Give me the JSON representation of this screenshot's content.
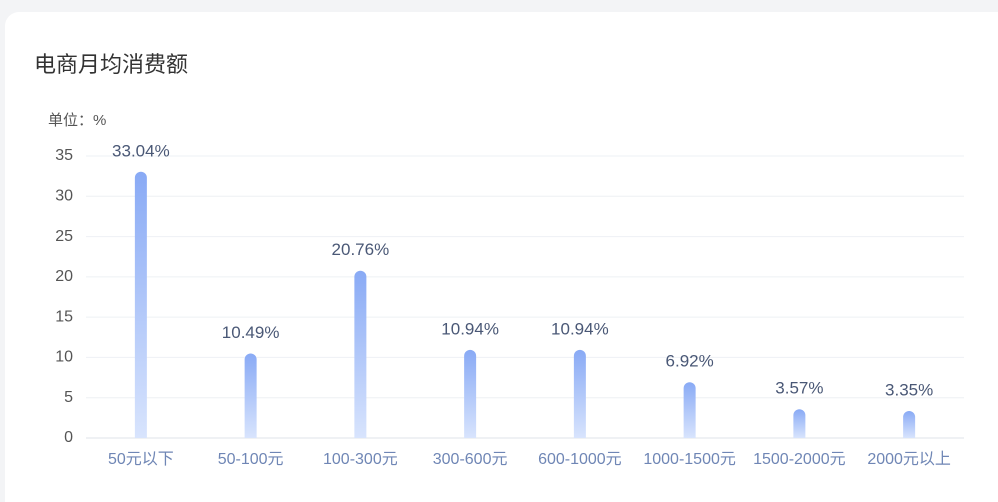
{
  "chart_data": {
    "type": "bar",
    "title": "电商月均消费额",
    "unit_label": "单位：%",
    "categories": [
      "50元以下",
      "50-100元",
      "100-300元",
      "300-600元",
      "600-1000元",
      "1000-1500元",
      "1500-2000元",
      "2000元以上"
    ],
    "values": [
      33.04,
      10.49,
      20.76,
      10.94,
      10.94,
      6.92,
      3.57,
      3.35
    ],
    "value_labels": [
      "33.04%",
      "10.49%",
      "20.76%",
      "10.94%",
      "10.94%",
      "6.92%",
      "3.57%",
      "3.35%"
    ],
    "color": "#89aaf5",
    "ylim": [
      0,
      35
    ],
    "yticks": [
      0,
      5,
      10,
      15,
      20,
      25,
      30,
      35
    ],
    "grid": true
  }
}
